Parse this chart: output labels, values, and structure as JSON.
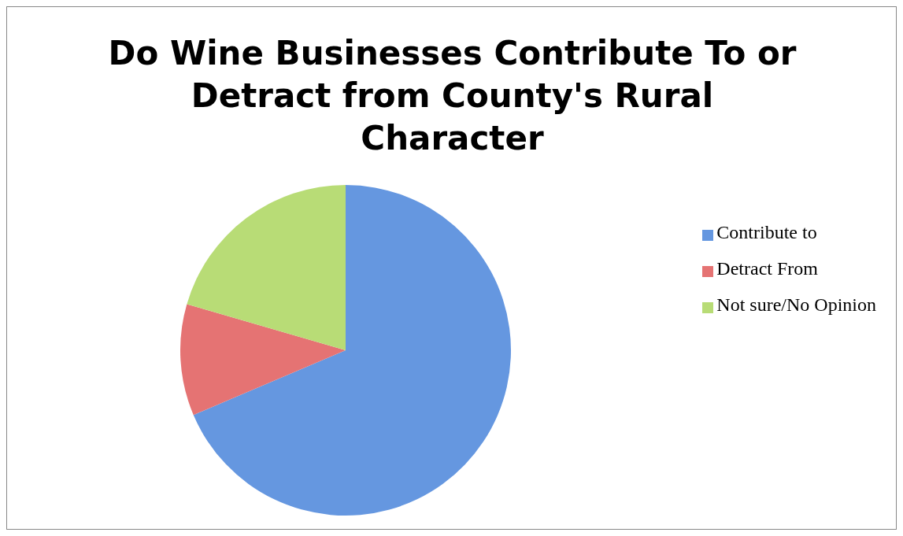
{
  "chart_data": {
    "type": "pie",
    "title": "Do Wine Businesses Contribute To or Detract from County's Rural Character",
    "categories": [
      "Contribute to",
      "Detract From",
      "Not sure/No Opinion"
    ],
    "values": [
      68.6,
      10.9,
      20.5
    ],
    "colors": [
      "#6597e0",
      "#e57373",
      "#b8dc76"
    ],
    "legend": "right"
  }
}
